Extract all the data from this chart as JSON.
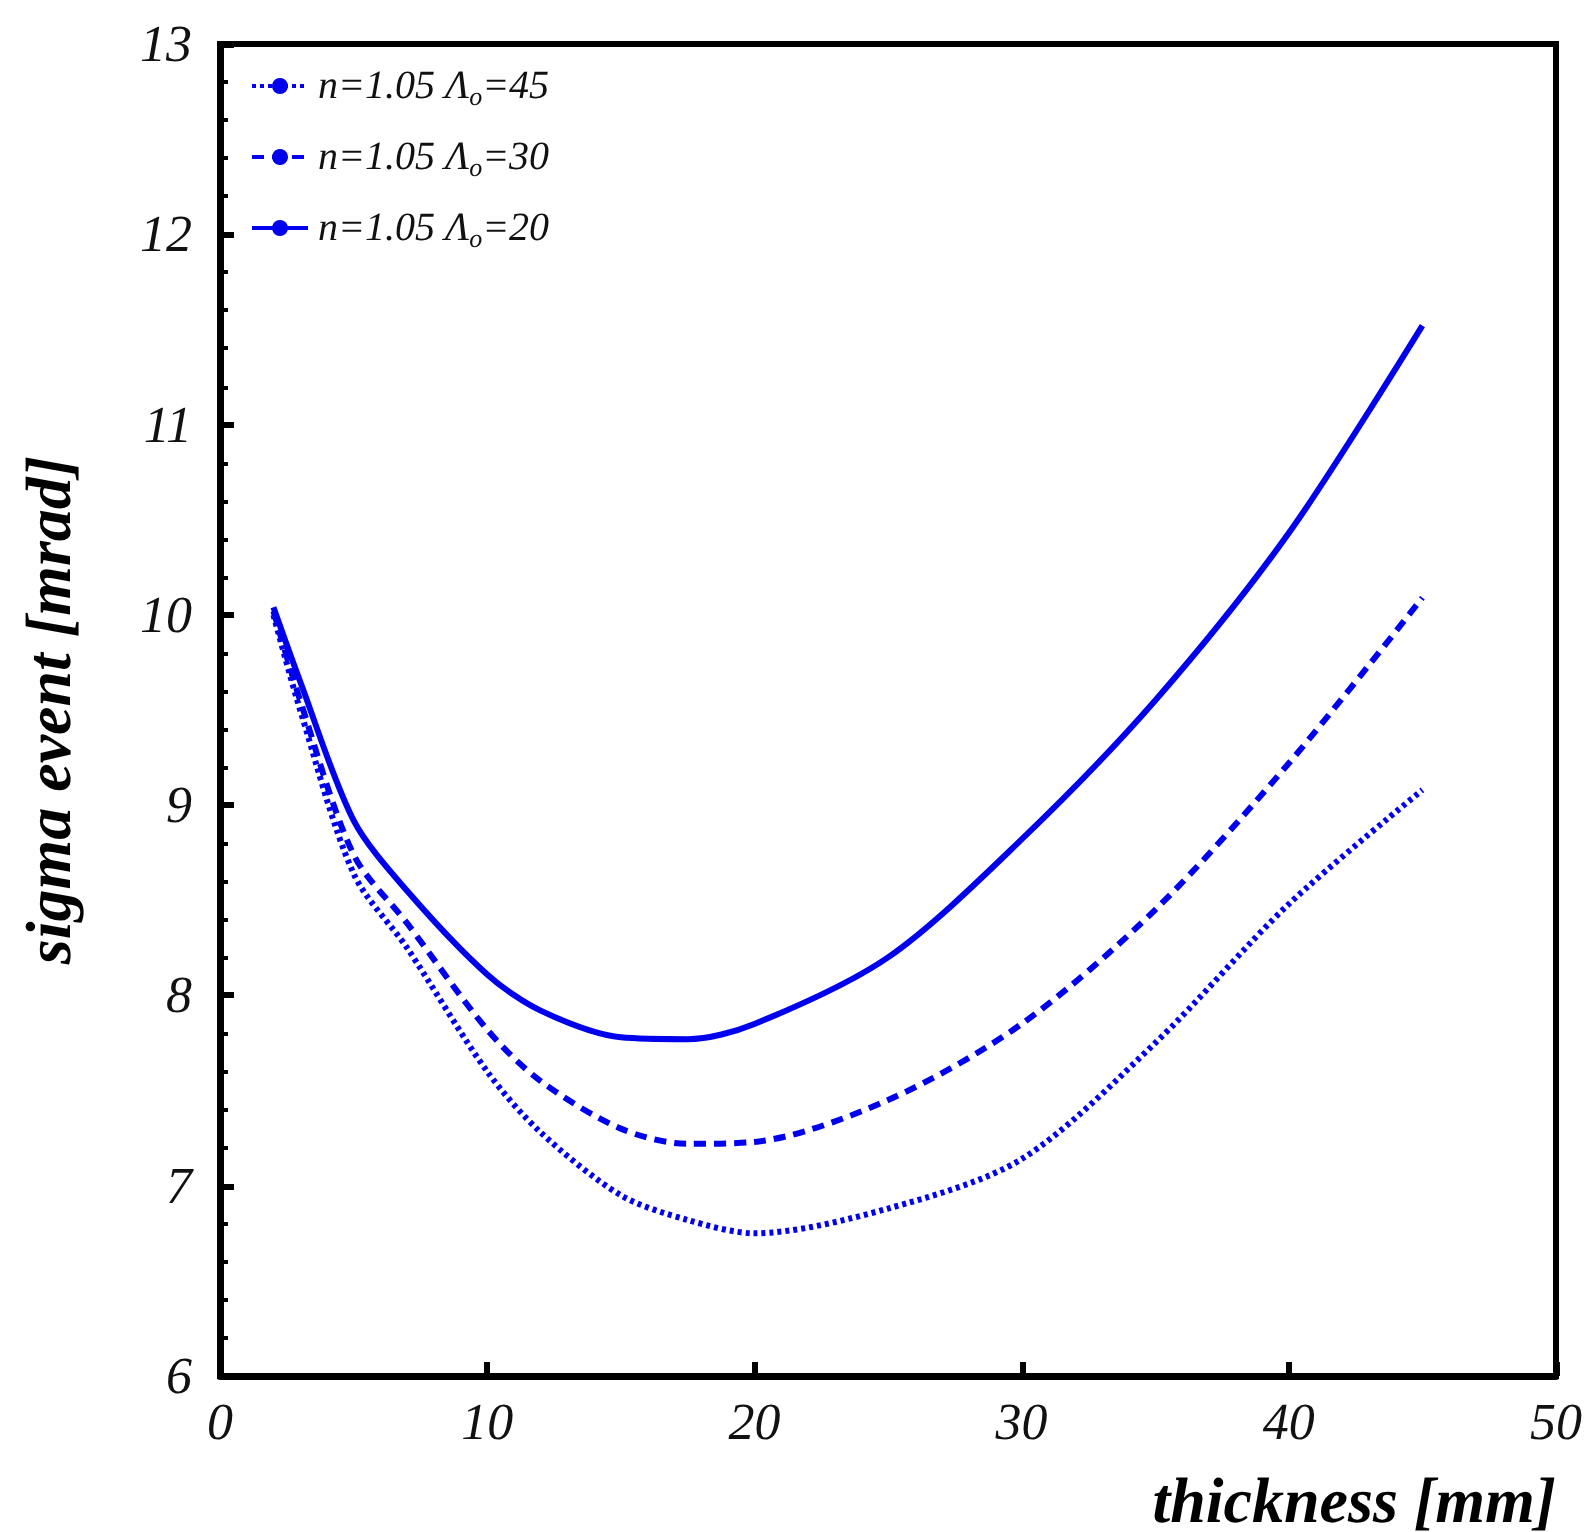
{
  "chart_data": {
    "type": "line",
    "xlabel": "thickness [mm]",
    "ylabel": "sigma event [mrad]",
    "xlim": [
      0,
      50
    ],
    "ylim": [
      6,
      13
    ],
    "xticks": [
      0,
      10,
      20,
      30,
      40,
      50
    ],
    "yticks": [
      6,
      7,
      8,
      9,
      10,
      11,
      12,
      13
    ],
    "grid": false,
    "legend": "top left",
    "marker": "none",
    "x": [
      2,
      3,
      5,
      7,
      10,
      12,
      15,
      17.5,
      20,
      25,
      30,
      35,
      40,
      45
    ],
    "series": [
      {
        "name": "n=1.05 Λ$_{o}$=45",
        "color": "#0000ee",
        "line_style": "dotted",
        "values": [
          10.0,
          9.5,
          8.64,
          8.25,
          7.6,
          7.28,
          6.95,
          6.82,
          6.75,
          6.88,
          7.14,
          7.75,
          8.48,
          9.08
        ]
      },
      {
        "name": "n=1.05 Λ$_{o}$=30",
        "color": "#0000ee",
        "line_style": "dashed",
        "values": [
          10.02,
          9.55,
          8.74,
          8.38,
          7.82,
          7.55,
          7.3,
          7.22,
          7.23,
          7.45,
          7.85,
          8.45,
          9.22,
          10.09
        ]
      },
      {
        "name": "n=1.05 Λ$_{o}$=20",
        "color": "#0000ee",
        "line_style": "solid",
        "values": [
          10.04,
          9.65,
          8.92,
          8.55,
          8.11,
          7.92,
          7.78,
          7.77,
          7.85,
          8.2,
          8.82,
          9.55,
          10.43,
          11.52
        ]
      }
    ]
  }
}
